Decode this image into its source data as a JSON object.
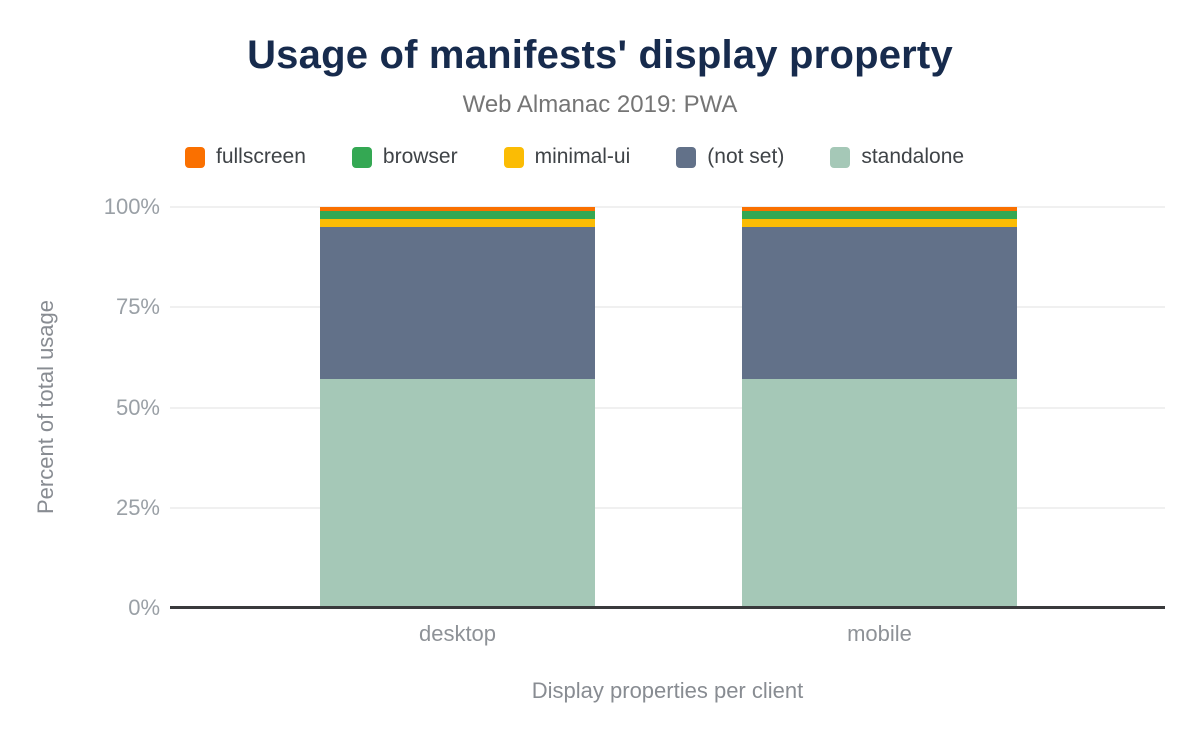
{
  "header": {
    "title": "Usage of manifests' display property",
    "subtitle": "Web Almanac 2019: PWA"
  },
  "chart_data": {
    "type": "bar",
    "stacked": true,
    "title": "Usage of manifests' display property",
    "subtitle": "Web Almanac 2019: PWA",
    "categories": [
      "desktop",
      "mobile"
    ],
    "series": [
      {
        "name": "fullscreen",
        "color": "#fa7000",
        "values": [
          1.0,
          1.0
        ]
      },
      {
        "name": "browser",
        "color": "#34a853",
        "values": [
          2.0,
          1.9
        ]
      },
      {
        "name": "minimal-ui",
        "color": "#fbbc04",
        "values": [
          2.0,
          2.0
        ]
      },
      {
        "name": "(not set)",
        "color": "#627189",
        "values": [
          38.0,
          38.0
        ]
      },
      {
        "name": "standalone",
        "color": "#a5c8b7",
        "values": [
          57.0,
          57.1
        ]
      }
    ],
    "xlabel": "Display properties per client",
    "ylabel": "Percent of total usage",
    "ylim": [
      0,
      100
    ],
    "yticks": [
      {
        "label": "0%",
        "value": 0
      },
      {
        "label": "25%",
        "value": 25
      },
      {
        "label": "50%",
        "value": 50
      },
      {
        "label": "75%",
        "value": 75
      },
      {
        "label": "100%",
        "value": 100
      }
    ],
    "grid": true,
    "legend_position": "top"
  }
}
